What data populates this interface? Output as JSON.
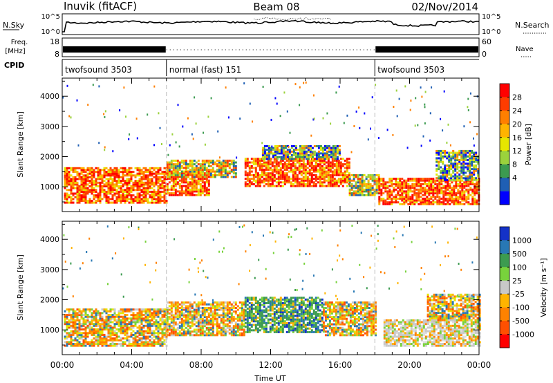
{
  "chart_data": {
    "type": "heatmap",
    "header": {
      "station": "Inuvik (fitACF)",
      "beam": "Beam 08",
      "date": "02/Nov/2014"
    },
    "noise_panel": {
      "left_label": "N.Sky",
      "left_ticks": [
        "10^5",
        "10^0"
      ],
      "right_ticks": [
        "10^5",
        "10^0"
      ],
      "right_label": "N.Search"
    },
    "freq_panel": {
      "left_label_top": "Freq.",
      "left_label_bottom": "[MHz]",
      "left_ticks": [
        18,
        8
      ],
      "right_ticks": [
        60,
        0
      ],
      "right_label": "Nave"
    },
    "cpid": {
      "label": "CPID",
      "segments": [
        {
          "name": "twofsound 3503",
          "start_hour": 0,
          "end_hour": 6
        },
        {
          "name": "normal (fast) 151",
          "start_hour": 6,
          "end_hour": 18
        },
        {
          "name": "twofsound 3503",
          "start_hour": 18,
          "end_hour": 24
        }
      ]
    },
    "x_axis": {
      "label": "Time UT",
      "range_hours": [
        0,
        24
      ],
      "tick_labels": [
        "00:00",
        "04:00",
        "08:00",
        "12:00",
        "16:00",
        "20:00",
        "00:00"
      ]
    },
    "power_panel": {
      "ylabel": "Slant Range [km]",
      "y_range": [
        180,
        4600
      ],
      "y_ticks": [
        1000,
        2000,
        3000,
        4000
      ],
      "colorbar_label": "Power [dB]",
      "colorbar_ticks": [
        28,
        24,
        20,
        16,
        12,
        8,
        4
      ],
      "colorbar_colors": [
        "#ff0000",
        "#ff3c00",
        "#ff7f00",
        "#ffb400",
        "#e6e600",
        "#9bd23c",
        "#3c9b50",
        "#1f5fb4",
        "#0000ff"
      ]
    },
    "velocity_panel": {
      "ylabel": "Slant Range [km]",
      "y_range": [
        180,
        4600
      ],
      "y_ticks": [
        1000,
        2000,
        3000,
        4000
      ],
      "colorbar_label": "Velocity [m s⁻¹]",
      "colorbar_ticks": [
        1000,
        500,
        100,
        25,
        -25,
        -100,
        -500,
        -1000
      ],
      "colorbar_colors": [
        "#1432c8",
        "#2878b4",
        "#3c9b50",
        "#78d23c",
        "#c8c8c8",
        "#ffb400",
        "#ff8200",
        "#ff5000",
        "#ff0000"
      ]
    },
    "echo_regions": {
      "power": [
        {
          "h0": 0.1,
          "h1": 6.0,
          "r0": 450,
          "r1": 1650,
          "tone": "high"
        },
        {
          "h0": 6.0,
          "h1": 8.5,
          "r0": 700,
          "r1": 1500,
          "tone": "high"
        },
        {
          "h0": 6.0,
          "h1": 10.0,
          "r0": 1300,
          "r1": 1900,
          "tone": "mid"
        },
        {
          "h0": 10.5,
          "h1": 16.5,
          "r0": 1000,
          "r1": 1950,
          "tone": "high"
        },
        {
          "h0": 11.5,
          "h1": 16.0,
          "r0": 1900,
          "r1": 2350,
          "tone": "low"
        },
        {
          "h0": 16.5,
          "h1": 18.2,
          "r0": 700,
          "r1": 1400,
          "tone": "mid"
        },
        {
          "h0": 18.2,
          "h1": 24.0,
          "r0": 400,
          "r1": 1250,
          "tone": "high"
        },
        {
          "h0": 21.5,
          "h1": 24.0,
          "r0": 1200,
          "r1": 2200,
          "tone": "low"
        }
      ],
      "velocity": [
        {
          "h0": 0.1,
          "h1": 6.0,
          "r0": 450,
          "r1": 1700,
          "tone": "neg"
        },
        {
          "h0": 6.0,
          "h1": 10.5,
          "r0": 800,
          "r1": 1900,
          "tone": "neg"
        },
        {
          "h0": 10.5,
          "h1": 15.0,
          "r0": 900,
          "r1": 2100,
          "tone": "pos"
        },
        {
          "h0": 15.0,
          "h1": 18.0,
          "r0": 800,
          "r1": 1900,
          "tone": "neg"
        },
        {
          "h0": 18.5,
          "h1": 24.0,
          "r0": 450,
          "r1": 1300,
          "tone": "zero"
        },
        {
          "h0": 21.0,
          "h1": 24.0,
          "r0": 1300,
          "r1": 2200,
          "tone": "neg"
        }
      ]
    }
  }
}
